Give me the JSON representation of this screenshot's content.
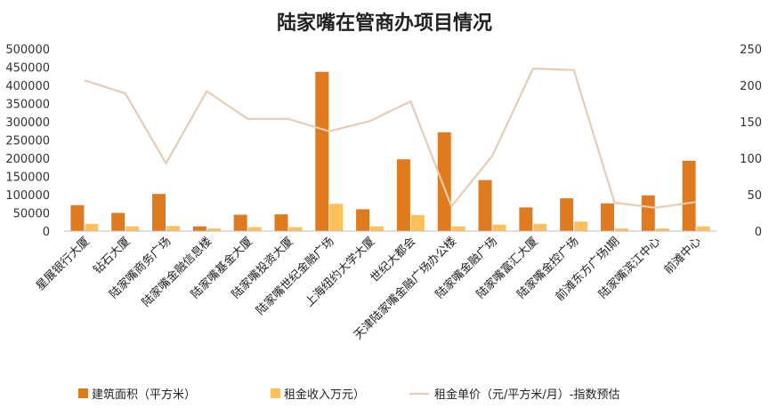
{
  "chart_data": {
    "type": "bar",
    "title": "陆家嘴在管商办项目情况",
    "categories": [
      "星展银行大厦",
      "钻石大厦",
      "陆家嘴商务广场",
      "陆家嘴金融信息楼",
      "陆家嘴基金大厦",
      "陆家嘴投资大厦",
      "陆家嘴世纪金融广场",
      "上海纽约大学大厦",
      "世纪大都会",
      "天津陆家嘴金融广场办公楼",
      "陆家嘴金融广场",
      "陆家嘴富汇大厦",
      "陆家嘴金控广场",
      "前滩东方广场I期",
      "陆家嘴滨江中心",
      "前滩中心"
    ],
    "series": [
      {
        "name": "建筑面积（平方米）",
        "axis": "left",
        "kind": "bar",
        "color": "#E07A1F",
        "values": [
          71000,
          50000,
          102000,
          13000,
          45000,
          46000,
          437000,
          60000,
          197000,
          271000,
          140000,
          65000,
          90000,
          76000,
          98000,
          193000
        ]
      },
      {
        "name": "租金收入万元）",
        "axis": "left",
        "kind": "bar",
        "color": "#FFC05C",
        "values": [
          20000,
          13000,
          14000,
          7000,
          11000,
          11000,
          75000,
          13000,
          44000,
          13000,
          18000,
          20000,
          26000,
          7000,
          7000,
          13000
        ]
      },
      {
        "name": "租金单价（元/平方米/月）-指数预估",
        "axis": "right",
        "kind": "line",
        "color": "#E8CBB0",
        "values": [
          207,
          189,
          93,
          192,
          154,
          154,
          137,
          151,
          178,
          34,
          103,
          223,
          221,
          39,
          32,
          40
        ]
      }
    ],
    "y_left": {
      "min": 0,
      "max": 500000,
      "ticks": [
        0,
        50000,
        100000,
        150000,
        200000,
        250000,
        300000,
        350000,
        400000,
        450000,
        500000
      ]
    },
    "y_right": {
      "min": 0,
      "max": 250,
      "ticks": [
        0,
        50,
        100,
        150,
        200,
        250
      ]
    },
    "grid": false,
    "legend_position": "bottom"
  }
}
